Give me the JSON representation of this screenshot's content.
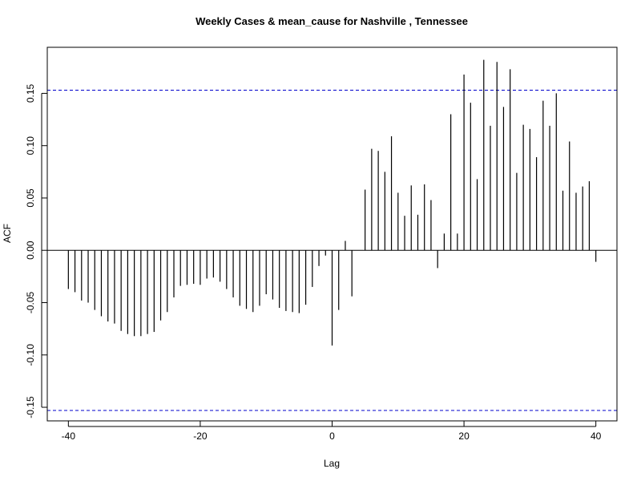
{
  "chart_data": {
    "type": "bar",
    "title": "Weekly Cases & mean_cause for Nashville , Tennessee",
    "xlabel": "Lag",
    "ylabel": "ACF",
    "xlim": [
      -43.2,
      43.2
    ],
    "ylim": [
      -0.163,
      0.194
    ],
    "x_ticks": [
      -40,
      -20,
      0,
      20,
      40
    ],
    "x_tick_labels": [
      "-40",
      "-20",
      "0",
      "20",
      "40"
    ],
    "y_ticks": [
      -0.15,
      -0.1,
      -0.05,
      0.0,
      0.05,
      0.1,
      0.15
    ],
    "y_tick_labels": [
      "-0.15",
      "-0.10",
      "-0.05",
      "0.00",
      "0.05",
      "0.10",
      "0.15"
    ],
    "confidence_bound": 0.153,
    "confidence_color": "#0000cc",
    "bar_color": "#000000",
    "zero_line": true,
    "grid": false,
    "lags": [
      -40,
      -39,
      -38,
      -37,
      -36,
      -35,
      -34,
      -33,
      -32,
      -31,
      -30,
      -29,
      -28,
      -27,
      -26,
      -25,
      -24,
      -23,
      -22,
      -21,
      -20,
      -19,
      -18,
      -17,
      -16,
      -15,
      -14,
      -13,
      -12,
      -11,
      -10,
      -9,
      -8,
      -7,
      -6,
      -5,
      -4,
      -3,
      -2,
      -1,
      0,
      1,
      2,
      3,
      4,
      5,
      6,
      7,
      8,
      9,
      10,
      11,
      12,
      13,
      14,
      15,
      16,
      17,
      18,
      19,
      20,
      21,
      22,
      23,
      24,
      25,
      26,
      27,
      28,
      29,
      30,
      31,
      32,
      33,
      34,
      35,
      36,
      37,
      38,
      39,
      40
    ],
    "values": [
      -0.037,
      -0.04,
      -0.048,
      -0.05,
      -0.057,
      -0.063,
      -0.068,
      -0.07,
      -0.077,
      -0.08,
      -0.082,
      -0.082,
      -0.08,
      -0.078,
      -0.067,
      -0.059,
      -0.045,
      -0.034,
      -0.033,
      -0.032,
      -0.033,
      -0.027,
      -0.026,
      -0.03,
      -0.037,
      -0.045,
      -0.053,
      -0.056,
      -0.059,
      -0.053,
      -0.042,
      -0.047,
      -0.055,
      -0.058,
      -0.059,
      -0.06,
      -0.052,
      -0.035,
      -0.015,
      -0.005,
      -0.091,
      -0.057,
      0.009,
      -0.044,
      0.0,
      0.058,
      0.097,
      0.095,
      0.075,
      0.109,
      0.055,
      0.033,
      0.062,
      0.034,
      0.063,
      0.048,
      -0.017,
      0.016,
      0.13,
      0.016,
      0.168,
      0.141,
      0.068,
      0.182,
      0.119,
      0.18,
      0.137,
      0.173,
      0.074,
      0.12,
      0.116,
      0.089,
      0.143,
      0.119,
      0.15,
      0.057,
      0.104,
      0.055,
      0.061,
      0.066,
      -0.011
    ]
  }
}
